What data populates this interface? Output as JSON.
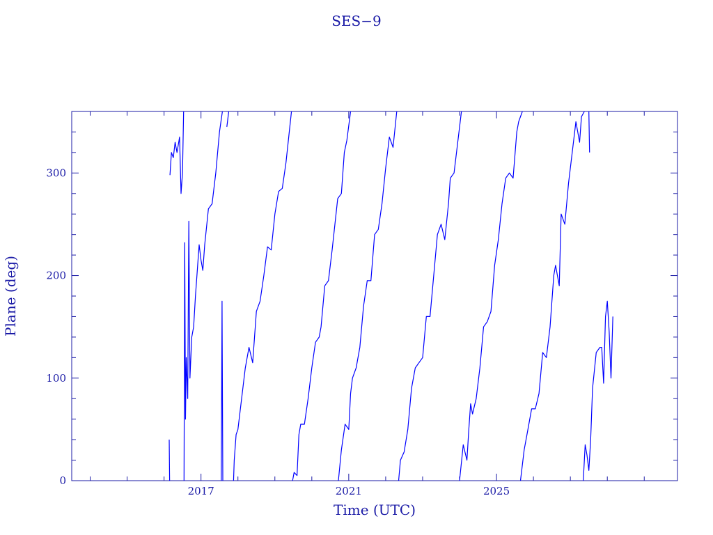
{
  "chart_data": {
    "type": "line",
    "title": "SES−9",
    "xlabel": "Time (UTC)",
    "ylabel": "Plane (deg)",
    "xlim": [
      2013.5,
      2029.9
    ],
    "ylim": [
      0,
      360
    ],
    "x_ticks": [
      {
        "value": 2017,
        "label": "2017"
      },
      {
        "value": 2021,
        "label": "2021"
      },
      {
        "value": 2025,
        "label": "2025"
      }
    ],
    "y_ticks": [
      {
        "value": 0,
        "label": "0"
      },
      {
        "value": 100,
        "label": "100"
      },
      {
        "value": 200,
        "label": "200"
      },
      {
        "value": 300,
        "label": "300"
      }
    ],
    "grid": false,
    "series": [
      {
        "color": "#0000ff",
        "segments": [
          [
            [
              2016.16,
              298
            ],
            [
              2016.2,
              320
            ],
            [
              2016.25,
              315
            ],
            [
              2016.3,
              330
            ],
            [
              2016.35,
              320
            ],
            [
              2016.42,
              335
            ],
            [
              2016.46,
              280
            ],
            [
              2016.5,
              300
            ],
            [
              2016.53,
              360
            ]
          ],
          [
            [
              2016.14,
              40
            ],
            [
              2016.15,
              0
            ]
          ],
          [
            [
              2016.54,
              0
            ],
            [
              2016.56,
              232
            ],
            [
              2016.58,
              60
            ],
            [
              2016.6,
              120
            ],
            [
              2016.64,
              80
            ],
            [
              2016.67,
              253
            ],
            [
              2016.7,
              100
            ],
            [
              2016.75,
              140
            ],
            [
              2016.8,
              150
            ],
            [
              2016.85,
              180
            ],
            [
              2016.95,
              230
            ],
            [
              2017.0,
              215
            ],
            [
              2017.05,
              205
            ],
            [
              2017.1,
              230
            ],
            [
              2017.2,
              265
            ],
            [
              2017.3,
              270
            ],
            [
              2017.4,
              300
            ],
            [
              2017.5,
              340
            ],
            [
              2017.58,
              360
            ]
          ],
          [
            [
              2017.55,
              0
            ],
            [
              2017.57,
              175
            ],
            [
              2017.59,
              0
            ]
          ],
          [
            [
              2017.7,
              345
            ],
            [
              2017.75,
              360
            ]
          ],
          [
            [
              2017.88,
              0
            ],
            [
              2017.9,
              20
            ],
            [
              2017.95,
              45
            ],
            [
              2018.0,
              50
            ],
            [
              2018.1,
              80
            ],
            [
              2018.2,
              110
            ],
            [
              2018.3,
              130
            ],
            [
              2018.4,
              115
            ],
            [
              2018.5,
              165
            ],
            [
              2018.6,
              175
            ],
            [
              2018.7,
              200
            ],
            [
              2018.8,
              228
            ],
            [
              2018.9,
              225
            ],
            [
              2019.0,
              260
            ],
            [
              2019.1,
              282
            ],
            [
              2019.2,
              285
            ],
            [
              2019.3,
              310
            ],
            [
              2019.45,
              360
            ]
          ],
          [
            [
              2019.48,
              0
            ],
            [
              2019.52,
              8
            ],
            [
              2019.6,
              5
            ],
            [
              2019.65,
              45
            ],
            [
              2019.7,
              55
            ],
            [
              2019.8,
              55
            ],
            [
              2019.9,
              80
            ],
            [
              2020.0,
              110
            ],
            [
              2020.1,
              135
            ],
            [
              2020.2,
              140
            ],
            [
              2020.25,
              150
            ],
            [
              2020.35,
              190
            ],
            [
              2020.45,
              195
            ],
            [
              2020.55,
              225
            ],
            [
              2020.7,
              275
            ],
            [
              2020.8,
              280
            ],
            [
              2020.88,
              320
            ],
            [
              2020.95,
              332
            ],
            [
              2021.05,
              360
            ]
          ],
          [
            [
              2020.72,
              0
            ],
            [
              2020.8,
              30
            ],
            [
              2020.9,
              55
            ],
            [
              2021.0,
              50
            ],
            [
              2021.05,
              85
            ],
            [
              2021.1,
              100
            ],
            [
              2021.2,
              110
            ],
            [
              2021.3,
              130
            ],
            [
              2021.4,
              170
            ],
            [
              2021.5,
              195
            ],
            [
              2021.6,
              195
            ],
            [
              2021.7,
              240
            ],
            [
              2021.8,
              245
            ],
            [
              2021.9,
              270
            ],
            [
              2022.0,
              305
            ],
            [
              2022.1,
              335
            ],
            [
              2022.2,
              325
            ],
            [
              2022.3,
              360
            ]
          ],
          [
            [
              2022.35,
              0
            ],
            [
              2022.4,
              20
            ],
            [
              2022.5,
              28
            ],
            [
              2022.6,
              50
            ],
            [
              2022.7,
              90
            ],
            [
              2022.8,
              110
            ],
            [
              2022.9,
              115
            ],
            [
              2023.0,
              120
            ],
            [
              2023.1,
              160
            ],
            [
              2023.2,
              160
            ],
            [
              2023.3,
              200
            ],
            [
              2023.4,
              240
            ],
            [
              2023.5,
              250
            ],
            [
              2023.6,
              235
            ],
            [
              2023.7,
              270
            ],
            [
              2023.75,
              295
            ],
            [
              2023.85,
              300
            ],
            [
              2023.95,
              330
            ],
            [
              2024.05,
              360
            ]
          ],
          [
            [
              2024.0,
              0
            ],
            [
              2024.1,
              35
            ],
            [
              2024.2,
              20
            ],
            [
              2024.25,
              50
            ],
            [
              2024.3,
              75
            ],
            [
              2024.35,
              65
            ],
            [
              2024.45,
              80
            ],
            [
              2024.55,
              110
            ],
            [
              2024.65,
              150
            ],
            [
              2024.75,
              155
            ],
            [
              2024.85,
              165
            ],
            [
              2024.95,
              210
            ],
            [
              2025.05,
              235
            ],
            [
              2025.15,
              270
            ],
            [
              2025.25,
              295
            ],
            [
              2025.35,
              300
            ],
            [
              2025.45,
              295
            ],
            [
              2025.55,
              340
            ],
            [
              2025.6,
              350
            ],
            [
              2025.7,
              360
            ]
          ],
          [
            [
              2025.65,
              0
            ],
            [
              2025.75,
              30
            ],
            [
              2025.85,
              50
            ],
            [
              2025.95,
              70
            ],
            [
              2026.05,
              70
            ],
            [
              2026.15,
              85
            ],
            [
              2026.25,
              125
            ],
            [
              2026.35,
              120
            ],
            [
              2026.45,
              150
            ],
            [
              2026.55,
              200
            ],
            [
              2026.6,
              210
            ],
            [
              2026.7,
              190
            ],
            [
              2026.75,
              260
            ],
            [
              2026.85,
              250
            ],
            [
              2026.95,
              290
            ],
            [
              2027.05,
              320
            ],
            [
              2027.15,
              350
            ],
            [
              2027.25,
              330
            ],
            [
              2027.3,
              355
            ],
            [
              2027.38,
              360
            ]
          ],
          [
            [
              2027.35,
              0
            ],
            [
              2027.4,
              35
            ],
            [
              2027.45,
              25
            ],
            [
              2027.5,
              10
            ],
            [
              2027.55,
              40
            ],
            [
              2027.6,
              90
            ],
            [
              2027.7,
              125
            ],
            [
              2027.8,
              130
            ],
            [
              2027.85,
              130
            ],
            [
              2027.9,
              95
            ],
            [
              2027.95,
              160
            ],
            [
              2028.0,
              175
            ],
            [
              2028.05,
              145
            ],
            [
              2028.1,
              100
            ],
            [
              2028.15,
              160
            ]
          ],
          [
            [
              2027.5,
              360
            ],
            [
              2027.52,
              320
            ]
          ]
        ]
      }
    ]
  }
}
